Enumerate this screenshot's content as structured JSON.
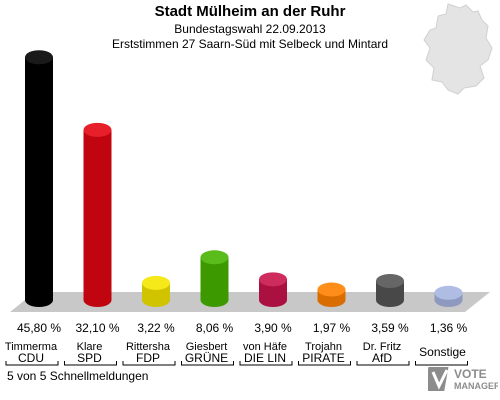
{
  "header": {
    "title": "Stadt Mülheim an der Ruhr",
    "subtitle": "Bundestagswahl 22.09.2013",
    "subtitle2": "Erststimmen 27 Saarn-Süd mit Selbeck und Mintard"
  },
  "footer": {
    "text": "5 von 5 Schnellmeldungen"
  },
  "logo": {
    "line1": "VOTE",
    "line2": "MANAGER"
  },
  "chart_data": {
    "type": "bar",
    "categories": [
      "Timmerma\nCDU",
      "Klare\nSPD",
      "Rittersha\nFDP",
      "Giesbert\nGRÜNE",
      "von Häfe\nDIE LIN",
      "Trojahn\nPIRATE",
      "Dr. Fritz\nAfD",
      "Sonstige"
    ],
    "candidates": [
      "Timmerma",
      "Klare",
      "Rittersha",
      "Giesbert",
      "von Häfe",
      "Trojahn",
      "Dr. Fritz",
      ""
    ],
    "parties": [
      "CDU",
      "SPD",
      "FDP",
      "GRÜNE",
      "DIE LIN",
      "PIRATE",
      "AfD",
      "Sonstige"
    ],
    "values": [
      45.8,
      32.1,
      3.22,
      8.06,
      3.9,
      1.97,
      3.59,
      1.36
    ],
    "value_labels": [
      "45,80 %",
      "32,10 %",
      "3,22 %",
      "8,06 %",
      "3,90 %",
      "1,97 %",
      "3,59 %",
      "1,36 %"
    ],
    "colors": [
      "#000000",
      "#e30613",
      "#f5e600",
      "#46b400",
      "#c8144b",
      "#ff8000",
      "#555555",
      "#a6b4e0"
    ],
    "ylim": [
      0,
      48
    ]
  }
}
